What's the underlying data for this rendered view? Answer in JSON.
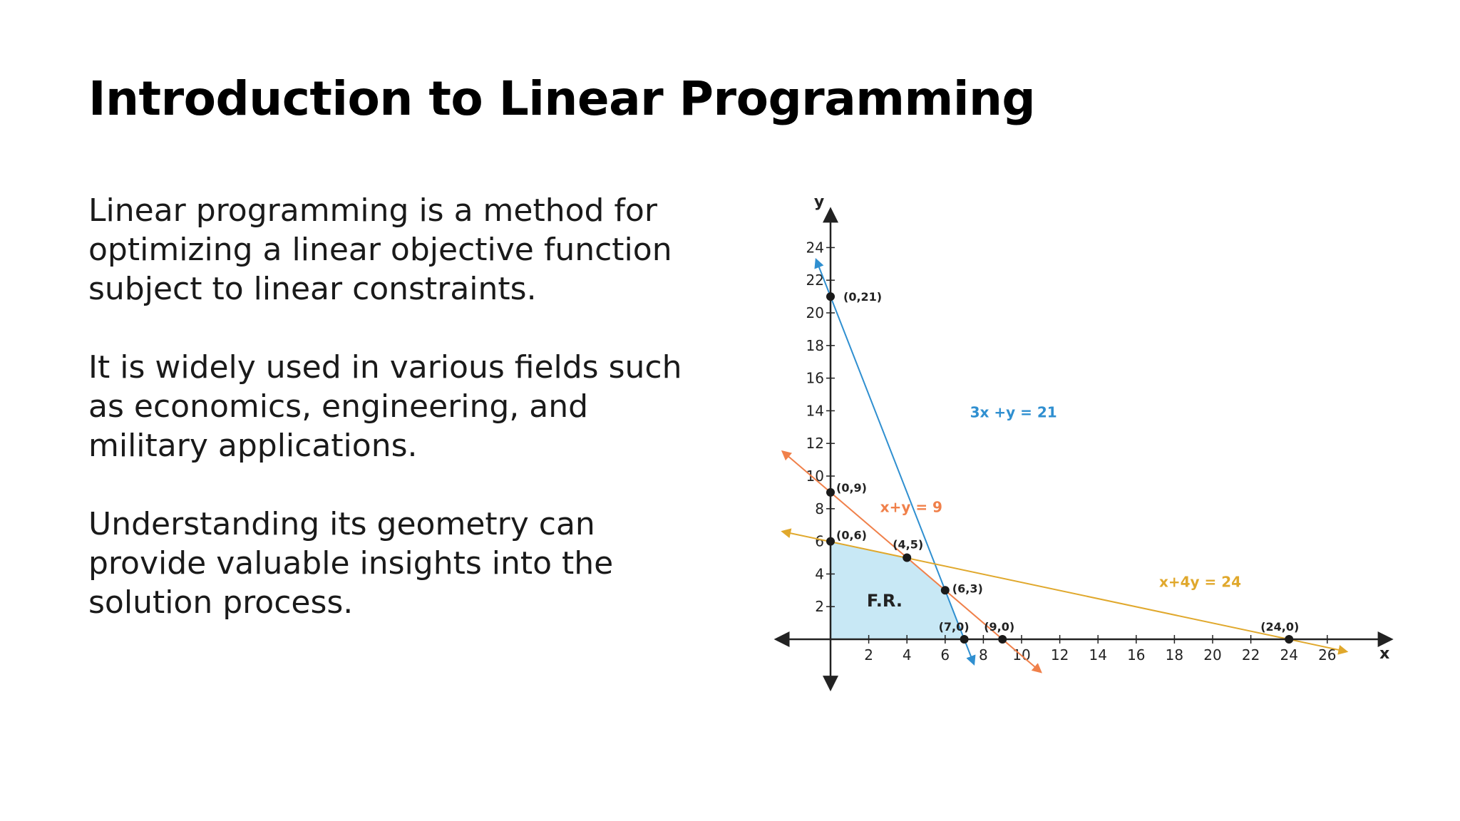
{
  "slide": {
    "title": "Introduction to Linear Programming",
    "paragraphs": [
      "Linear programming is a method for optimizing a linear objective function subject to linear constraints.",
      "It is widely used in various fields such as economics, engineering, and military applications.",
      "Understanding its geometry can provide valuable insights into the solution process."
    ]
  },
  "chart_data": {
    "type": "line",
    "title": "",
    "xlabel": "x",
    "ylabel": "y",
    "xlim": [
      -2,
      28
    ],
    "ylim": [
      -4,
      26
    ],
    "x_ticks": [
      "2",
      "4",
      "6",
      "8",
      "10",
      "12",
      "14",
      "16",
      "18",
      "20",
      "22",
      "24",
      "26"
    ],
    "y_ticks": [
      "2",
      "4",
      "6",
      "8",
      "10",
      "12",
      "14",
      "16",
      "18",
      "20",
      "22",
      "24"
    ],
    "series": [
      {
        "name": "3x +y = 21",
        "color": "#2f8fd0",
        "from": [
          -0.75,
          23.25
        ],
        "to": [
          7.5,
          -1.5
        ]
      },
      {
        "name": "x+y = 9",
        "color": "#f0804a",
        "from": [
          -2.5,
          11.5
        ],
        "to": [
          11.0,
          -2.0
        ]
      },
      {
        "name": "x+4y = 24",
        "color": "#e0a82c",
        "from": [
          -2.5,
          6.6
        ],
        "to": [
          27.0,
          -0.75
        ]
      }
    ],
    "points": [
      {
        "label": "(0,21)",
        "x": 0,
        "y": 21
      },
      {
        "label": "(0,9)",
        "x": 0,
        "y": 9
      },
      {
        "label": "(0,6)",
        "x": 0,
        "y": 6
      },
      {
        "label": "(4,5)",
        "x": 4,
        "y": 5
      },
      {
        "label": "(6,3)",
        "x": 6,
        "y": 3
      },
      {
        "label": "(7,0)",
        "x": 7,
        "y": 0
      },
      {
        "label": "(9,0)",
        "x": 9,
        "y": 0
      },
      {
        "label": "(24,0)",
        "x": 24,
        "y": 0
      }
    ],
    "feasible_region": {
      "label": "F.R.",
      "color": "#c8e8f5",
      "vertices": [
        [
          0,
          0
        ],
        [
          0,
          6
        ],
        [
          4,
          5
        ],
        [
          6,
          3
        ],
        [
          7,
          0
        ]
      ]
    }
  }
}
